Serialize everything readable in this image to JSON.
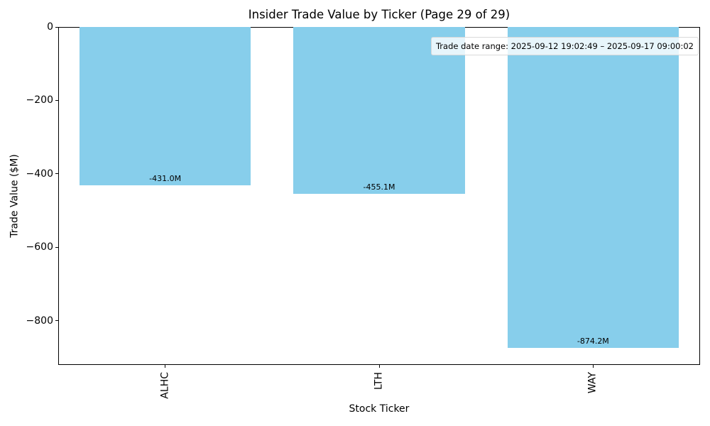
{
  "chart_data": {
    "type": "bar",
    "title": "Insider Trade Value by Ticker (Page 29 of 29)",
    "xlabel": "Stock Ticker",
    "ylabel": "Trade Value ($M)",
    "categories": [
      "ALHC",
      "LTH",
      "WAY"
    ],
    "values": [
      -431.0,
      -455.1,
      -874.2
    ],
    "bar_labels": [
      "-431.0M",
      "-455.1M",
      "-874.2M"
    ],
    "yticks": [
      0,
      -200,
      -400,
      -600,
      -800
    ],
    "ytick_labels": [
      "0",
      "−200",
      "−400",
      "−600",
      "−800"
    ],
    "ylim": [
      -920,
      0
    ],
    "bar_width_frac": 0.8,
    "grid": false,
    "bar_color": "#87CEEB",
    "legend": {
      "position": "upper right",
      "entries": [
        "Trade date range: 2025-09-12 19:02:49 – 2025-09-17 09:00:02"
      ]
    }
  }
}
